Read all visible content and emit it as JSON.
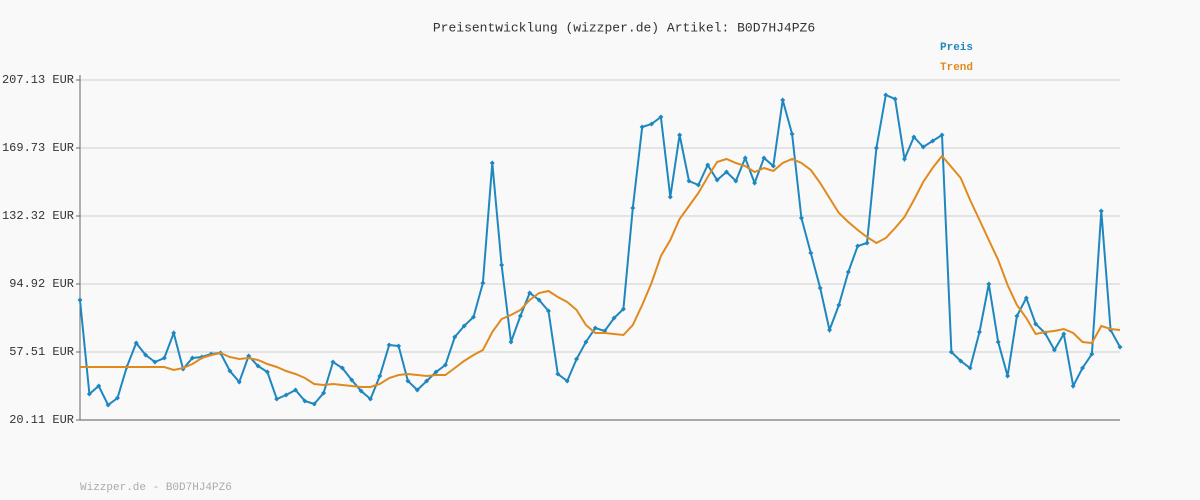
{
  "chart_data": {
    "type": "line",
    "title": "Preisentwicklung (wizzper.de) Artikel: B0D7HJ4PZ6",
    "footer": "Wizzper.de - B0D7HJ4PZ6",
    "ylim": [
      20.11,
      207.13
    ],
    "yticks": [
      {
        "value": 20.11,
        "label": "20.11 EUR"
      },
      {
        "value": 57.51,
        "label": "57.51 EUR"
      },
      {
        "value": 94.92,
        "label": "94.92 EUR"
      },
      {
        "value": 132.32,
        "label": "132.32 EUR"
      },
      {
        "value": 169.73,
        "label": "169.73 EUR"
      },
      {
        "value": 207.13,
        "label": "207.13 EUR"
      }
    ],
    "grid": true,
    "series": [
      {
        "name": "Preis",
        "color": "#1f87c0",
        "markers": true,
        "values": [
          86.13,
          34.43,
          38.83,
          28.38,
          32.23,
          49.28,
          62.48,
          55.88,
          52.03,
          54.23,
          67.98,
          48.18,
          54.23,
          54.78,
          56.43,
          56.98,
          47.08,
          41.03,
          55.33,
          49.83,
          46.53,
          31.68,
          33.88,
          36.63,
          30.58,
          28.93,
          34.98,
          52.03,
          48.73,
          42.13,
          36.08,
          31.68,
          44.33,
          61.38,
          60.83,
          41.58,
          36.63,
          41.58,
          46.53,
          50.38,
          65.78,
          71.83,
          76.78,
          95.48,
          161.48,
          105.38,
          63.03,
          77.33,
          89.98,
          86.13,
          80.08,
          45.43,
          41.58,
          53.68,
          63.03,
          70.73,
          69.08,
          76.23,
          81.18,
          136.73,
          181.28,
          182.93,
          186.78,
          142.78,
          176.88,
          151.58,
          149.38,
          160.38,
          152.13,
          156.53,
          151.58,
          164.23,
          150.48,
          164.23,
          159.83,
          196.13,
          177.43,
          131.23,
          111.98,
          92.73,
          69.63,
          83.38,
          101.53,
          115.83,
          117.48,
          169.73,
          198.88,
          196.68,
          163.68,
          175.78,
          170.28,
          173.58,
          176.88,
          57.53,
          52.58,
          48.73,
          68.53,
          94.93,
          63.03,
          44.33,
          77.33,
          87.23,
          72.93,
          67.98,
          58.63,
          67.43,
          38.83,
          48.73,
          56.43,
          135.08,
          69.63,
          60.28
        ]
      },
      {
        "name": "Trend",
        "color": "#e08a1e",
        "markers": false,
        "values": [
          49.28,
          49.28,
          49.28,
          49.28,
          49.28,
          49.28,
          49.28,
          49.28,
          49.28,
          49.28,
          47.63,
          48.73,
          50.93,
          54.23,
          55.88,
          56.98,
          54.78,
          53.68,
          54.23,
          53.13,
          50.93,
          49.28,
          47.08,
          45.43,
          43.23,
          39.93,
          39.38,
          39.93,
          39.38,
          38.83,
          38.28,
          38.28,
          39.93,
          43.23,
          44.88,
          45.43,
          44.88,
          44.33,
          44.88,
          44.88,
          48.73,
          52.58,
          55.88,
          58.63,
          68.53,
          75.68,
          77.88,
          80.63,
          86.13,
          89.98,
          91.08,
          87.78,
          85.03,
          80.63,
          72.38,
          67.98,
          67.98,
          67.43,
          66.88,
          72.38,
          83.38,
          95.48,
          110.33,
          119.13,
          130.68,
          137.83,
          144.98,
          153.78,
          162.03,
          163.68,
          161.48,
          159.83,
          156.53,
          158.73,
          157.08,
          161.48,
          163.68,
          161.48,
          157.63,
          150.48,
          142.23,
          133.98,
          129.03,
          124.63,
          120.78,
          117.48,
          120.23,
          125.73,
          131.78,
          141.13,
          151.03,
          158.73,
          165.33,
          159.28,
          153.23,
          141.13,
          130.13,
          119.13,
          108.13,
          94.38,
          83.38,
          76.23,
          67.43,
          68.53,
          69.08,
          70.18,
          67.98,
          63.03,
          62.48,
          71.83,
          70.18,
          69.63
        ]
      }
    ]
  }
}
